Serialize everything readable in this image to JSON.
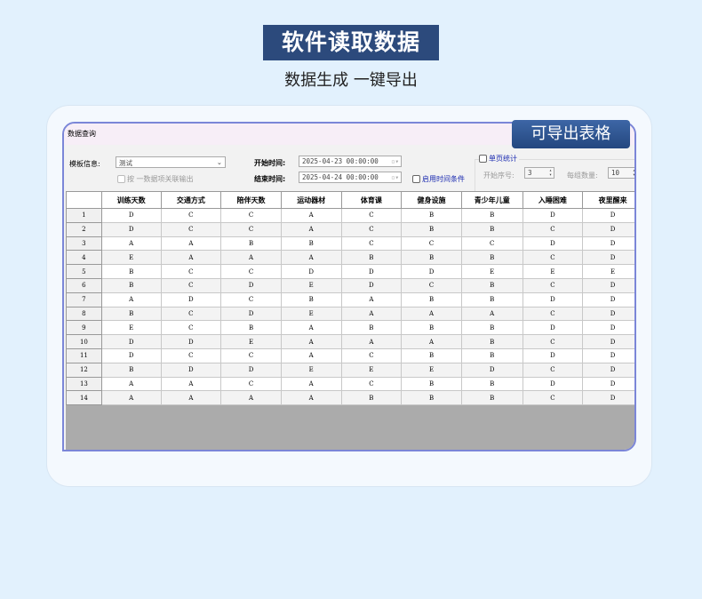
{
  "header": {
    "title": "软件读取数据",
    "subtitle": "数据生成  一键导出"
  },
  "export_badge": "可导出表格",
  "window": {
    "title": "数据查询",
    "template_label": "模板信息:",
    "template_value": "测试",
    "group_checkbox_label": "按  一数据项关联输出",
    "start_label": "开始时间:",
    "start_value": "2025-04-23 00:00:00",
    "end_label": "结束时间:",
    "end_value": "2025-04-24 00:00:00",
    "enable_time_label": "启用时间条件",
    "page_stats_label": "单页统计",
    "start_index_label": "开始序号:",
    "start_index_value": "3",
    "group_count_label": "每组数量:",
    "group_count_value": "10"
  },
  "table": {
    "columns": [
      "训练天数",
      "交通方式",
      "陪伴天数",
      "运动器材",
      "体育课",
      "健身设施",
      "青少年儿童",
      "入睡困难",
      "夜里醒来"
    ],
    "rows": [
      [
        "1",
        "D",
        "C",
        "C",
        "A",
        "C",
        "B",
        "B",
        "D",
        "D"
      ],
      [
        "2",
        "D",
        "C",
        "C",
        "A",
        "C",
        "B",
        "B",
        "C",
        "D"
      ],
      [
        "3",
        "A",
        "A",
        "B",
        "B",
        "C",
        "C",
        "C",
        "D",
        "D"
      ],
      [
        "4",
        "E",
        "A",
        "A",
        "A",
        "B",
        "B",
        "B",
        "C",
        "D"
      ],
      [
        "5",
        "B",
        "C",
        "C",
        "D",
        "D",
        "D",
        "E",
        "E",
        "E"
      ],
      [
        "6",
        "B",
        "C",
        "D",
        "E",
        "D",
        "C",
        "B",
        "C",
        "D"
      ],
      [
        "7",
        "A",
        "D",
        "C",
        "B",
        "A",
        "B",
        "B",
        "D",
        "D"
      ],
      [
        "8",
        "B",
        "C",
        "D",
        "E",
        "A",
        "A",
        "A",
        "C",
        "D"
      ],
      [
        "9",
        "E",
        "C",
        "B",
        "A",
        "B",
        "B",
        "B",
        "D",
        "D"
      ],
      [
        "10",
        "D",
        "D",
        "E",
        "A",
        "A",
        "A",
        "B",
        "C",
        "D"
      ],
      [
        "11",
        "D",
        "C",
        "C",
        "A",
        "C",
        "B",
        "B",
        "D",
        "D"
      ],
      [
        "12",
        "B",
        "D",
        "D",
        "E",
        "E",
        "E",
        "D",
        "C",
        "D"
      ],
      [
        "13",
        "A",
        "A",
        "C",
        "A",
        "C",
        "B",
        "B",
        "D",
        "D"
      ],
      [
        "14",
        "A",
        "A",
        "A",
        "A",
        "B",
        "B",
        "B",
        "C",
        "D"
      ]
    ]
  }
}
